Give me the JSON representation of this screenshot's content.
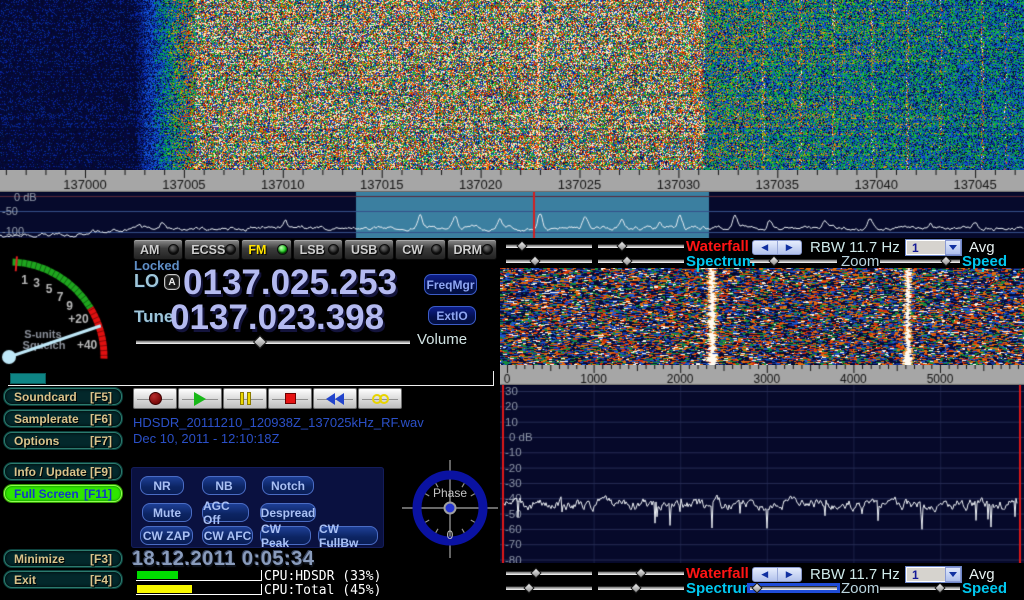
{
  "main_scale": {
    "labels": [
      "137000",
      "137005",
      "137010",
      "137015",
      "137020",
      "137025",
      "137030",
      "137035",
      "137040",
      "137045"
    ]
  },
  "overview_spectrum": {
    "db_labels": [
      "0 dB",
      "-50",
      "-100"
    ]
  },
  "smeter": {
    "scale_labels": [
      "1",
      "3",
      "5",
      "7",
      "9",
      "+20",
      "+40"
    ],
    "caption_line1": "S-units",
    "caption_line2": "Squelch"
  },
  "modes": {
    "items": [
      {
        "label": "AM",
        "active": false
      },
      {
        "label": "ECSS",
        "active": false
      },
      {
        "label": "FM",
        "active": true
      },
      {
        "label": "LSB",
        "active": false
      },
      {
        "label": "USB",
        "active": false
      },
      {
        "label": "CW",
        "active": false
      },
      {
        "label": "DRM",
        "active": false
      }
    ]
  },
  "tuning": {
    "locked_label": "Locked",
    "lo_label": "LO",
    "lo_badge": "A",
    "lo_value": "0137.025.253",
    "tune_label": "Tune",
    "tune_value": "0137.023.398",
    "freqmgr_label": "FreqMgr",
    "extio_label": "ExtIO",
    "volume_label": "Volume",
    "volume_pct": 47
  },
  "left_buttons": [
    {
      "label": "Soundcard",
      "key": "[F5]",
      "active": false
    },
    {
      "label": "Samplerate",
      "key": "[F6]",
      "active": false
    },
    {
      "label": "Options",
      "key": "[F7]",
      "active": false
    },
    {
      "label": "Info / Update",
      "key": "[F9]",
      "active": false
    },
    {
      "label": "Full Screen",
      "key": "[F11]",
      "active": true
    },
    {
      "label": "Minimize",
      "key": "[F3]",
      "active": false
    },
    {
      "label": "Exit",
      "key": "[F4]",
      "active": false
    }
  ],
  "transport": {
    "buttons": [
      "record",
      "play",
      "pause",
      "stop",
      "rewind",
      "loop"
    ]
  },
  "recording": {
    "filename": "HDSDR_20111210_120938Z_137025kHz_RF.wav",
    "timestamp": "Dec 10, 2011 - 12:10:18Z"
  },
  "dsp": {
    "buttons": [
      "NR",
      "NB",
      "Notch",
      "Mute",
      "AGC Off",
      "Despread",
      "CW ZAP",
      "CW AFC",
      "CW Peak",
      "CW FullBw"
    ]
  },
  "phase": {
    "label": "Phase",
    "value": "0"
  },
  "status": {
    "clock": "18.12.2011 0:05:34",
    "cpu": [
      {
        "label": "CPU:HDSDR (33%)",
        "pct": 33,
        "color": "#00dc00"
      },
      {
        "label": "CPU:Total (45%)",
        "pct": 45,
        "color": "#f8f800"
      }
    ]
  },
  "right_panel": {
    "zoom_scale_labels": [
      "0",
      "1000",
      "2000",
      "3000",
      "4000",
      "5000"
    ],
    "zoom_db_labels": [
      "30",
      "20",
      "10",
      "0 dB",
      "-10",
      "-20",
      "-30",
      "-40",
      "-50",
      "-60",
      "-70",
      "-80"
    ],
    "top_bar": {
      "waterfall": "Waterfall",
      "spectrum": "Spectrum",
      "rbw": "RBW 11.7 Hz",
      "zoom": "Zoom",
      "avg": "Avg",
      "speed": "Speed",
      "avg_value": "1",
      "sliders": {
        "wf_a": 14,
        "wf_b": 25,
        "sp_a": 31,
        "sp_b": 31,
        "zoom": 25,
        "speed": 87
      },
      "zoom_focused": false
    },
    "bottom_bar": {
      "waterfall": "Waterfall",
      "spectrum": "Spectrum",
      "rbw": "RBW 11.7 Hz",
      "zoom": "Zoom",
      "avg": "Avg",
      "speed": "Speed",
      "avg_value": "1",
      "sliders": {
        "wf_a": 33,
        "wf_b": 50,
        "sp_a": 24,
        "sp_b": 44,
        "zoom": 2,
        "speed": 78
      },
      "zoom_focused": true
    }
  },
  "colors": {
    "accent_red": "#ff1414",
    "accent_cyan": "#00c8f0",
    "digit_lavender": "#b4baf0",
    "panel_navy": "#0a1140",
    "button_tan": "#d9c38b",
    "active_green": "#2fe500",
    "highlight_region": "#3b7fa0",
    "cursor_red": "#d42020"
  }
}
